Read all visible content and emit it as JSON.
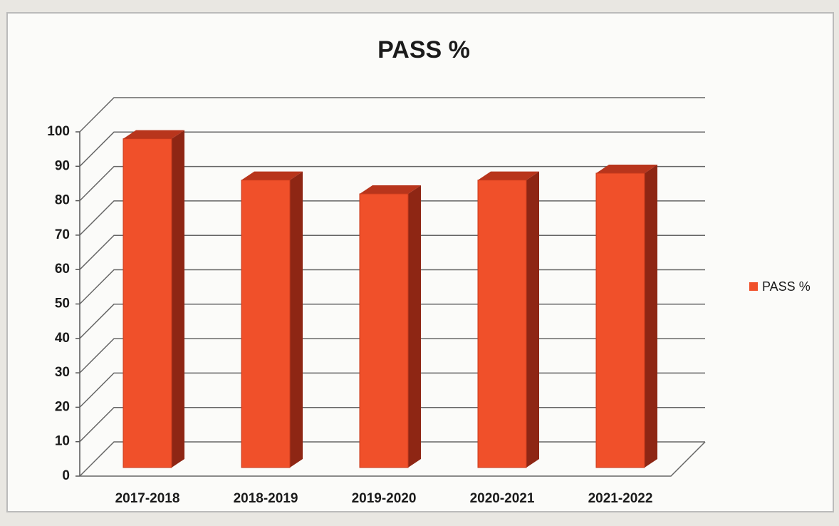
{
  "chart_data": {
    "type": "bar3d",
    "title": "PASS %",
    "categories": [
      "2017-2018",
      "2018-2019",
      "2019-2020",
      "2020-2021",
      "2021-2022"
    ],
    "series": [
      {
        "name": "PASS %",
        "color": "#f0502a",
        "values": [
          98,
          86,
          82,
          86,
          88
        ]
      }
    ],
    "ylim": [
      0,
      100
    ],
    "yticks": [
      0,
      10,
      20,
      30,
      40,
      50,
      60,
      70,
      80,
      90,
      100
    ],
    "grid": true,
    "legend": "right"
  }
}
